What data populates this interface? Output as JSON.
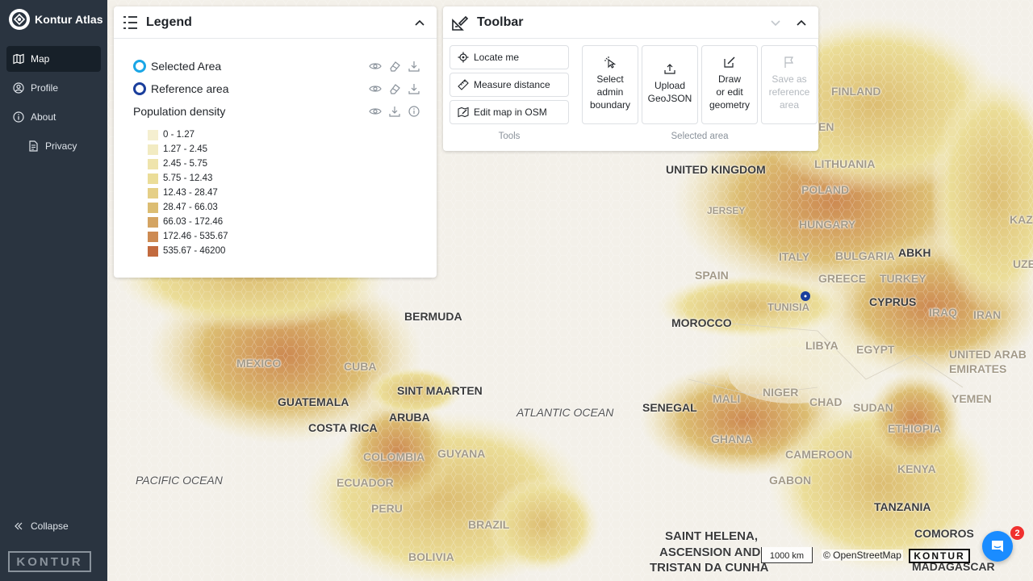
{
  "app": {
    "brand_name": "Kontur Atlas",
    "logo_text": "KONTUR"
  },
  "sidebar": {
    "items": [
      {
        "label": "Map",
        "icon": "map-icon",
        "active": true
      },
      {
        "label": "Profile",
        "icon": "user-icon"
      },
      {
        "label": "About",
        "icon": "info-icon"
      },
      {
        "label": "Privacy",
        "icon": "document-icon"
      }
    ],
    "collapse_label": "Collapse"
  },
  "legend": {
    "title": "Legend",
    "layers": [
      {
        "name": "Selected Area",
        "ring_color": "#1aa6e6"
      },
      {
        "name": "Reference area",
        "ring_color": "#1a3e9c"
      },
      {
        "name": "Population density"
      }
    ],
    "bins": [
      {
        "label": "0 - 1.27",
        "color": "#f5efd0"
      },
      {
        "label": "1.27 - 2.45",
        "color": "#f2ebc2"
      },
      {
        "label": "2.45 - 5.75",
        "color": "#efe4ac"
      },
      {
        "label": "5.75 - 12.43",
        "color": "#ebdd98"
      },
      {
        "label": "12.43 - 28.47",
        "color": "#e5cf86"
      },
      {
        "label": "28.47 - 66.03",
        "color": "#dcbd72"
      },
      {
        "label": "66.03 - 172.46",
        "color": "#d4a462"
      },
      {
        "label": "172.46 - 535.67",
        "color": "#cd8a52"
      },
      {
        "label": "535.67 - 46200",
        "color": "#c26a3e"
      }
    ]
  },
  "toolbar": {
    "title": "Toolbar",
    "tools": [
      {
        "label": "Locate me",
        "icon": "locate-icon"
      },
      {
        "label": "Measure distance",
        "icon": "ruler-icon"
      },
      {
        "label": "Edit map in OSM",
        "icon": "edit-map-icon"
      }
    ],
    "tools_section_label": "Tools",
    "selected_area_buttons": [
      {
        "label": "Select admin boundary",
        "lines": [
          "Select",
          "admin",
          "boundary"
        ],
        "icon": "cursor-click-icon"
      },
      {
        "label": "Upload GeoJSON",
        "lines": [
          "Upload",
          "GeoJSON"
        ],
        "icon": "upload-icon"
      },
      {
        "label": "Draw or edit geometry",
        "lines": [
          "Draw",
          "or edit",
          "geometry"
        ],
        "icon": "draw-edit-icon"
      },
      {
        "label": "Save as reference area",
        "lines": [
          "Save as",
          "reference",
          "area"
        ],
        "icon": "flag-icon",
        "disabled": true
      }
    ],
    "selected_area_section_label": "Selected area"
  },
  "map": {
    "labels": [
      "FINLAND",
      "LITHUANIA",
      "UNITED KINGDOM",
      "POLAND",
      "JERSEY",
      "HUNGARY",
      "KAZ",
      "ITALY",
      "BULGARIA",
      "ABKH",
      "UZBE",
      "SPAIN",
      "GREECE",
      "TURKEY",
      "TUNISIA",
      "CYPRUS",
      "IRAQ",
      "IRAN",
      "MOROCCO",
      "LIBYA",
      "EGYPT",
      "UNITED ARAB EMIRATES",
      "BERMUDA",
      "CUBA",
      "MEXICO",
      "SINT MAARTEN",
      "GUATEMALA",
      "ARUBA",
      "COSTA RICA",
      "SENEGAL",
      "MALI",
      "NIGER",
      "CHAD",
      "SUDAN",
      "YEMEN",
      "ETHIOPIA",
      "GHANA",
      "CAMEROON",
      "GUYANA",
      "COLOMBIA",
      "ECUADOR",
      "GABON",
      "KENYA",
      "PERU",
      "BRAZIL",
      "TANZANIA",
      "BOLIVIA",
      "COMOROS",
      "SAINT HELENA,",
      "ASCENSION AND",
      "TRISTAN DA CUNHA",
      "MADAGASCAR",
      "EN"
    ],
    "oceans": [
      "ATLANTIC OCEAN",
      "PACIFIC OCEAN"
    ],
    "scale_label": "1000 km",
    "attribution": "© OpenStreetMap",
    "map_logo": "KONTUR"
  },
  "chat": {
    "badge_count": "2"
  }
}
